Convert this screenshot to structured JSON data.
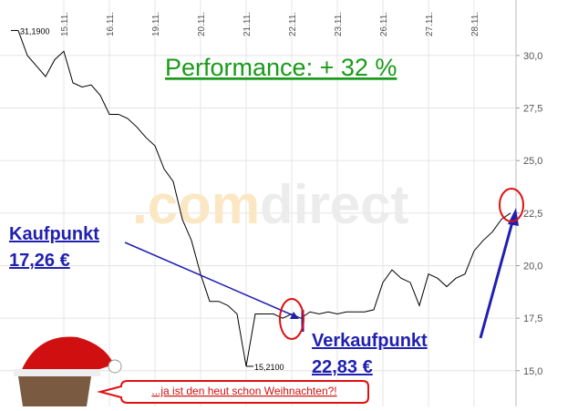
{
  "chart_data": {
    "type": "line",
    "title": "Performance:  + 32 %",
    "categories": [
      null,
      null,
      null,
      null,
      null,
      "15.11.",
      null,
      null,
      null,
      null,
      "16.11.",
      null,
      null,
      null,
      null,
      "19.11.",
      null,
      null,
      null,
      null,
      "20.11.",
      null,
      null,
      null,
      null,
      "21.11.",
      null,
      null,
      null,
      null,
      "22.11.",
      null,
      null,
      null,
      null,
      "23.11.",
      null,
      null,
      null,
      null,
      "26.11.",
      null,
      null,
      null,
      null,
      "27.11.",
      null,
      null,
      null,
      null,
      "28.11.",
      null,
      null,
      null,
      null
    ],
    "values": [
      31.19,
      30.0,
      29.5,
      29.0,
      29.8,
      30.2,
      28.7,
      28.5,
      28.6,
      28.1,
      27.2,
      27.2,
      27.0,
      26.6,
      26.1,
      25.7,
      24.6,
      24.0,
      22.2,
      21.2,
      19.6,
      18.3,
      18.3,
      18.1,
      17.7,
      15.21,
      17.7,
      17.7,
      17.7,
      17.5,
      17.7,
      17.5,
      17.8,
      17.7,
      17.8,
      17.7,
      17.8,
      17.8,
      17.8,
      17.9,
      19.2,
      19.8,
      19.4,
      19.2,
      18.1,
      19.6,
      19.4,
      19.0,
      19.4,
      19.6,
      20.7,
      21.2,
      21.6,
      22.2,
      22.5
    ],
    "color": "#000000",
    "high": {
      "value": 31.19,
      "label": "31,1900"
    },
    "low": {
      "value": 15.21,
      "label": "15,2100"
    },
    "ylim": [
      13.3,
      32.64
    ],
    "yticks": [
      {
        "value": 15,
        "label": "15,0"
      },
      {
        "value": 17.5,
        "label": "17,5"
      },
      {
        "value": 20,
        "label": "20,0"
      },
      {
        "value": 22.5,
        "label": "22,5"
      },
      {
        "value": 25,
        "label": "25,0"
      },
      {
        "value": 27.5,
        "label": "27,5"
      },
      {
        "value": 30,
        "label": "30,0"
      }
    ],
    "grid": true,
    "watermark": [
      ".com",
      "direct"
    ],
    "buy_label": "Kaufpunkt",
    "buy_price": "17,26 €",
    "sell_label": "Verkaufpunkt",
    "sell_price": "22,83 €",
    "speech": "...ja ist den heut schon Weihnachten?!"
  }
}
